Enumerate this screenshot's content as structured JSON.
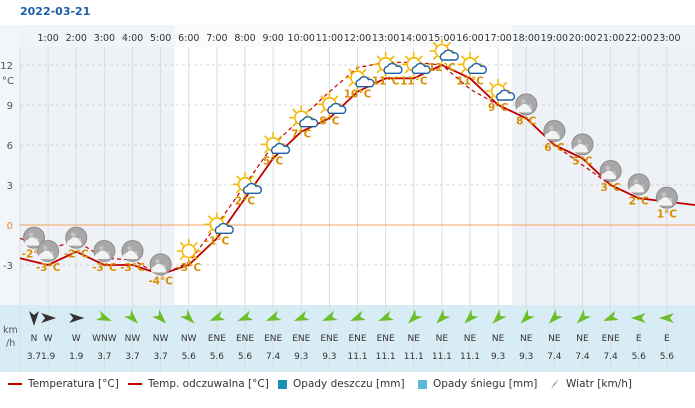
{
  "date": "2022-03-21",
  "colors": {
    "temp": "#c00000",
    "feels": "#c00000",
    "accent_text": "#1a5fa8",
    "temp_label": "#d98e00",
    "rain": "#1a8fb3",
    "snow": "#5bb8d6",
    "night_band": "#eef1f5",
    "day_band": "#ffffff",
    "wind_band": "#d8ecf5",
    "zero_line": "#f4a261"
  },
  "units": {
    "temp_axis": "°C",
    "wind_axis_1": "km",
    "wind_axis_2": "/h"
  },
  "legend": {
    "temp": "Temperatura [°C]",
    "feels": "Temp. odczuwalna [°C]",
    "rain": "Opady deszczu [mm]",
    "snow": "Opady śniegu [mm]",
    "wind": "Wiatr [km/h]"
  },
  "chart_data": {
    "type": "line",
    "x": [
      "1:00",
      "2:00",
      "3:00",
      "4:00",
      "5:00",
      "6:00",
      "7:00",
      "8:00",
      "9:00",
      "10:00",
      "11:00",
      "12:00",
      "13:00",
      "14:00",
      "15:00",
      "16:00",
      "17:00",
      "18:00",
      "19:00",
      "20:00",
      "21:00",
      "22:00",
      "23:00"
    ],
    "series": [
      {
        "name": "Temperatura [°C]",
        "values": [
          -2.5,
          -3,
          -2,
          -3,
          -3,
          -3.7,
          -3,
          -1,
          2,
          5,
          7,
          8,
          10,
          11,
          11,
          12,
          11,
          9,
          8,
          6,
          5,
          3,
          2
        ]
      },
      {
        "name": "Temp. odczuwalna [°C]",
        "values": [
          -1,
          -1.8,
          -1.2,
          -2.5,
          -2.6,
          -3.8,
          -2.8,
          0,
          3,
          6,
          8,
          10,
          11.8,
          12.2,
          12.2,
          12,
          10.2,
          9,
          8,
          6,
          4.5,
          3,
          2
        ]
      }
    ],
    "temp_labels": [
      "-2°C",
      "-3°C",
      "-2°C",
      "-3°C",
      "-3°C",
      "-4°C",
      "-3°C",
      "-1°C",
      "2°C",
      "5°C",
      "7°C",
      "8°C",
      "10°C",
      "11°C",
      "11°C",
      "12°C",
      "11°C",
      "9°C",
      "8°C",
      "6°C",
      "5°C",
      "3°C",
      "2°C",
      "1°C"
    ],
    "icon_temps": [
      -2,
      -3,
      -2,
      -3,
      -3,
      -4,
      -3,
      -1,
      2,
      5,
      7,
      8,
      10,
      11,
      11,
      12,
      11,
      9,
      8,
      6,
      5,
      3,
      2,
      1
    ],
    "icons": [
      "night-cloudy",
      "night-cloudy",
      "night-cloudy",
      "night-cloudy",
      "night-cloudy",
      "night-cloudy",
      "sun",
      "sun-cloud",
      "sun-cloud",
      "sun-cloud",
      "sun-cloud",
      "sun-cloud",
      "sun-cloud",
      "sun-cloud",
      "sun-cloud",
      "sun-cloud",
      "sun-cloud",
      "sun-cloud",
      "night-cloudy",
      "night-cloudy",
      "night-cloudy",
      "night-cloudy",
      "night-cloudy",
      "night-cloudy"
    ],
    "yticks": [
      -3,
      0,
      3,
      6,
      9,
      12
    ],
    "ylim": [
      -6,
      15
    ],
    "wind": {
      "dirs": [
        "N",
        "W",
        "W",
        "WNW",
        "NW",
        "NW",
        "NW",
        "ENE",
        "ENE",
        "ENE",
        "ENE",
        "ENE",
        "ENE",
        "ENE",
        "NE",
        "NE",
        "NE",
        "NE",
        "NE",
        "NE",
        "NE",
        "ENE",
        "E",
        "E"
      ],
      "speeds": [
        "3.7",
        "1.9",
        "1.9",
        "3.7",
        "3.7",
        "3.7",
        "5.6",
        "5.6",
        "5.6",
        "7.4",
        "9.3",
        "9.3",
        "11.1",
        "11.1",
        "11.1",
        "11.1",
        "11.1",
        "9.3",
        "9.3",
        "7.4",
        "7.4",
        "7.4",
        "5.6",
        "5.6"
      ]
    },
    "grid": true
  }
}
